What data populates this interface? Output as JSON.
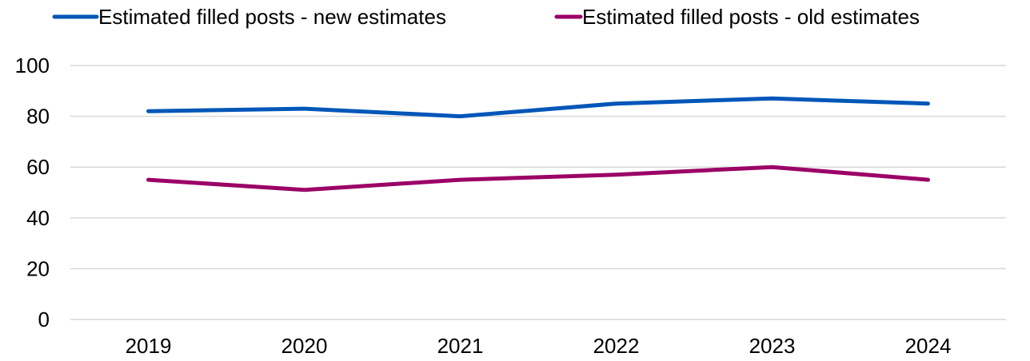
{
  "chart_data": {
    "type": "line",
    "title": "",
    "xlabel": "",
    "ylabel": "",
    "categories": [
      "2019",
      "2020",
      "2021",
      "2022",
      "2023",
      "2024"
    ],
    "ylim": [
      0,
      100
    ],
    "yticks": [
      "0",
      "20",
      "40",
      "60",
      "80",
      "100"
    ],
    "grid": true,
    "legend_position": "top",
    "series": [
      {
        "name": "Estimated filled posts - new estimates",
        "color": "#0057B8",
        "values": [
          82,
          83,
          80,
          85,
          87,
          85
        ]
      },
      {
        "name": "Estimated filled posts - old estimates",
        "color": "#9B0066",
        "values": [
          55,
          51,
          55,
          57,
          60,
          55
        ]
      }
    ]
  }
}
